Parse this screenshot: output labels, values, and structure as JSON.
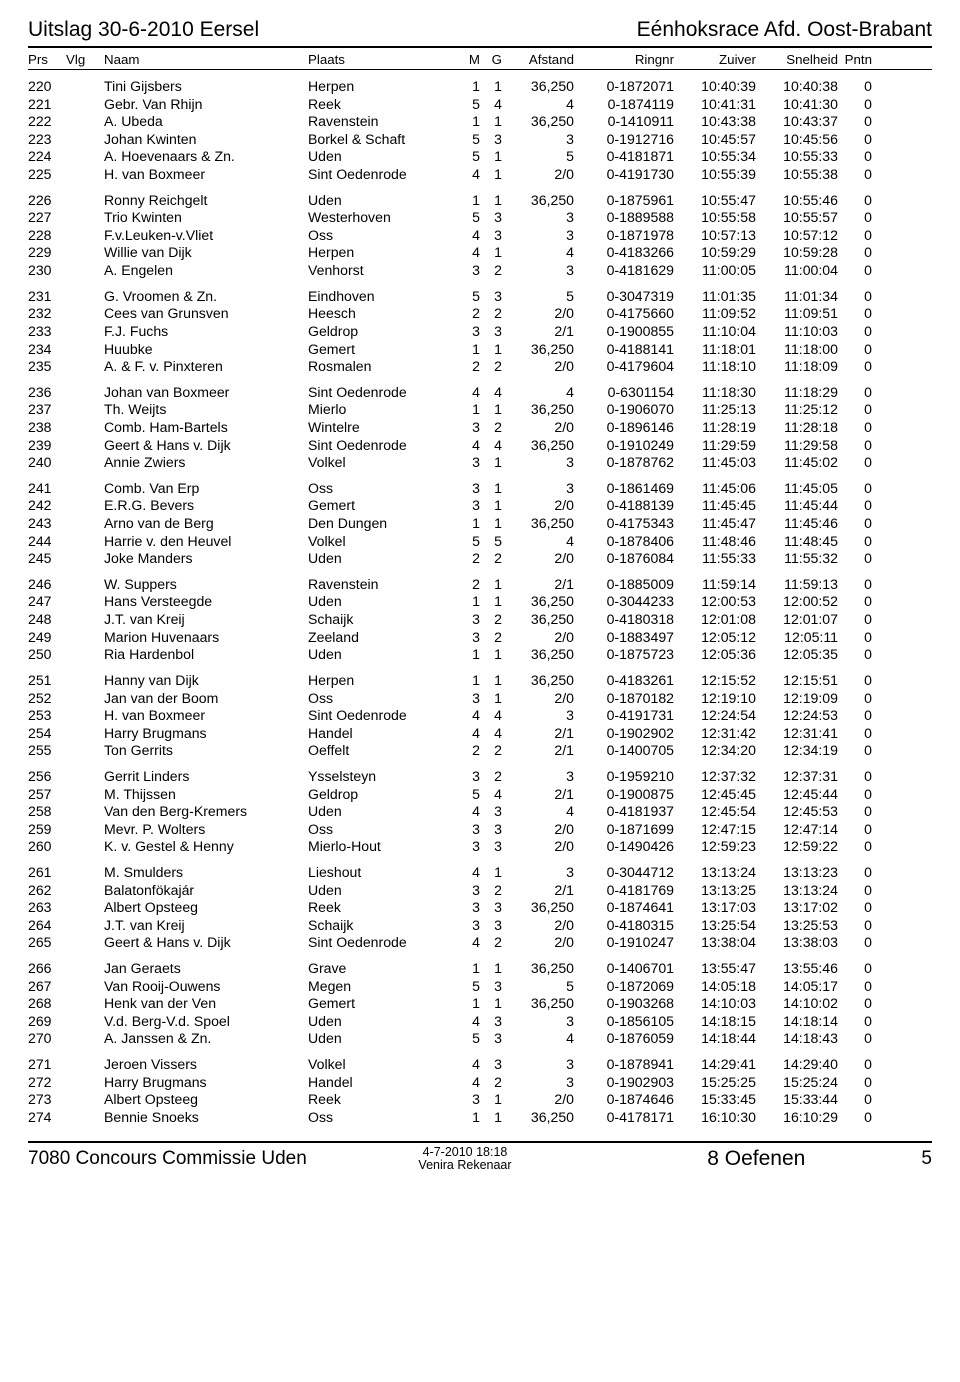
{
  "header": {
    "left": "Uitslag  30-6-2010     Eersel",
    "right": "Eénhoksrace Afd. Oost-Brabant"
  },
  "columns": [
    "Prs",
    "Vlg",
    "Naam",
    "",
    "Plaats",
    "M",
    "G",
    "Afstand",
    "Ringnr",
    "Zuiver",
    "Snelheid",
    "Pntn"
  ],
  "footer": {
    "left": "7080 Concours Commissie Uden",
    "mid1": "4-7-2010        18:18",
    "mid2": "Venira Rekenaar",
    "right1": "8  Oefenen",
    "right2": "5"
  },
  "blocks": [
    [
      {
        "prs": "220",
        "naam": "Tini Gijsbers",
        "plaats": "Herpen",
        "m": "1",
        "g": "1",
        "afst": "36,250",
        "ring": "0-1872071",
        "zuiv": "10:40:39",
        "snel": "10:40:38",
        "pntn": "0"
      },
      {
        "prs": "221",
        "naam": "Gebr. Van Rhijn",
        "plaats": "Reek",
        "m": "5",
        "g": "4",
        "afst": "4",
        "ring": "0-1874119",
        "zuiv": "10:41:31",
        "snel": "10:41:30",
        "pntn": "0"
      },
      {
        "prs": "222",
        "naam": "A. Ubeda",
        "plaats": "Ravenstein",
        "m": "1",
        "g": "1",
        "afst": "36,250",
        "ring": "0-1410911",
        "zuiv": "10:43:38",
        "snel": "10:43:37",
        "pntn": "0"
      },
      {
        "prs": "223",
        "naam": "Johan Kwinten",
        "plaats": "Borkel & Schaft",
        "m": "5",
        "g": "3",
        "afst": "3",
        "ring": "0-1912716",
        "zuiv": "10:45:57",
        "snel": "10:45:56",
        "pntn": "0"
      },
      {
        "prs": "224",
        "naam": "A. Hoevenaars & Zn.",
        "plaats": "Uden",
        "m": "5",
        "g": "1",
        "afst": "5",
        "ring": "0-4181871",
        "zuiv": "10:55:34",
        "snel": "10:55:33",
        "pntn": "0"
      },
      {
        "prs": "225",
        "naam": "H. van Boxmeer",
        "plaats": "Sint Oedenrode",
        "m": "4",
        "g": "1",
        "afst": "2/0",
        "ring": "0-4191730",
        "zuiv": "10:55:39",
        "snel": "10:55:38",
        "pntn": "0"
      }
    ],
    [
      {
        "prs": "226",
        "naam": "Ronny Reichgelt",
        "plaats": "Uden",
        "m": "1",
        "g": "1",
        "afst": "36,250",
        "ring": "0-1875961",
        "zuiv": "10:55:47",
        "snel": "10:55:46",
        "pntn": "0"
      },
      {
        "prs": "227",
        "naam": "Trio Kwinten",
        "plaats": "Westerhoven",
        "m": "5",
        "g": "3",
        "afst": "3",
        "ring": "0-1889588",
        "zuiv": "10:55:58",
        "snel": "10:55:57",
        "pntn": "0"
      },
      {
        "prs": "228",
        "naam": "F.v.Leuken-v.Vliet",
        "plaats": "Oss",
        "m": "4",
        "g": "3",
        "afst": "3",
        "ring": "0-1871978",
        "zuiv": "10:57:13",
        "snel": "10:57:12",
        "pntn": "0"
      },
      {
        "prs": "229",
        "naam": "Willie van Dijk",
        "plaats": "Herpen",
        "m": "4",
        "g": "1",
        "afst": "4",
        "ring": "0-4183266",
        "zuiv": "10:59:29",
        "snel": "10:59:28",
        "pntn": "0"
      },
      {
        "prs": "230",
        "naam": "A. Engelen",
        "plaats": "Venhorst",
        "m": "3",
        "g": "2",
        "afst": "3",
        "ring": "0-4181629",
        "zuiv": "11:00:05",
        "snel": "11:00:04",
        "pntn": "0"
      }
    ],
    [
      {
        "prs": "231",
        "naam": "G. Vroomen & Zn.",
        "plaats": "Eindhoven",
        "m": "5",
        "g": "3",
        "afst": "5",
        "ring": "0-3047319",
        "zuiv": "11:01:35",
        "snel": "11:01:34",
        "pntn": "0"
      },
      {
        "prs": "232",
        "naam": "Cees van Grunsven",
        "plaats": "Heesch",
        "m": "2",
        "g": "2",
        "afst": "2/0",
        "ring": "0-4175660",
        "zuiv": "11:09:52",
        "snel": "11:09:51",
        "pntn": "0"
      },
      {
        "prs": "233",
        "naam": "F.J. Fuchs",
        "plaats": "Geldrop",
        "m": "3",
        "g": "3",
        "afst": "2/1",
        "ring": "0-1900855",
        "zuiv": "11:10:04",
        "snel": "11:10:03",
        "pntn": "0"
      },
      {
        "prs": "234",
        "naam": "Huubke",
        "plaats": "Gemert",
        "m": "1",
        "g": "1",
        "afst": "36,250",
        "ring": "0-4188141",
        "zuiv": "11:18:01",
        "snel": "11:18:00",
        "pntn": "0"
      },
      {
        "prs": "235",
        "naam": "A. & F. v. Pinxteren",
        "plaats": "Rosmalen",
        "m": "2",
        "g": "2",
        "afst": "2/0",
        "ring": "0-4179604",
        "zuiv": "11:18:10",
        "snel": "11:18:09",
        "pntn": "0"
      }
    ],
    [
      {
        "prs": "236",
        "naam": "Johan van Boxmeer",
        "plaats": "Sint Oedenrode",
        "m": "4",
        "g": "4",
        "afst": "4",
        "ring": "0-6301154",
        "zuiv": "11:18:30",
        "snel": "11:18:29",
        "pntn": "0"
      },
      {
        "prs": "237",
        "naam": "Th. Weijts",
        "plaats": "Mierlo",
        "m": "1",
        "g": "1",
        "afst": "36,250",
        "ring": "0-1906070",
        "zuiv": "11:25:13",
        "snel": "11:25:12",
        "pntn": "0"
      },
      {
        "prs": "238",
        "naam": "Comb. Ham-Bartels",
        "plaats": "Wintelre",
        "m": "3",
        "g": "2",
        "afst": "2/0",
        "ring": "0-1896146",
        "zuiv": "11:28:19",
        "snel": "11:28:18",
        "pntn": "0"
      },
      {
        "prs": "239",
        "naam": "Geert & Hans v. Dijk",
        "plaats": "Sint Oedenrode",
        "m": "4",
        "g": "4",
        "afst": "36,250",
        "ring": "0-1910249",
        "zuiv": "11:29:59",
        "snel": "11:29:58",
        "pntn": "0"
      },
      {
        "prs": "240",
        "naam": "Annie Zwiers",
        "plaats": "Volkel",
        "m": "3",
        "g": "1",
        "afst": "3",
        "ring": "0-1878762",
        "zuiv": "11:45:03",
        "snel": "11:45:02",
        "pntn": "0"
      }
    ],
    [
      {
        "prs": "241",
        "naam": "Comb. Van Erp",
        "plaats": "Oss",
        "m": "3",
        "g": "1",
        "afst": "3",
        "ring": "0-1861469",
        "zuiv": "11:45:06",
        "snel": "11:45:05",
        "pntn": "0"
      },
      {
        "prs": "242",
        "naam": "E.R.G. Bevers",
        "plaats": "Gemert",
        "m": "3",
        "g": "1",
        "afst": "2/0",
        "ring": "0-4188139",
        "zuiv": "11:45:45",
        "snel": "11:45:44",
        "pntn": "0"
      },
      {
        "prs": "243",
        "naam": "Arno van de Berg",
        "plaats": "Den Dungen",
        "m": "1",
        "g": "1",
        "afst": "36,250",
        "ring": "0-4175343",
        "zuiv": "11:45:47",
        "snel": "11:45:46",
        "pntn": "0"
      },
      {
        "prs": "244",
        "naam": "Harrie v. den Heuvel",
        "plaats": "Volkel",
        "m": "5",
        "g": "5",
        "afst": "4",
        "ring": "0-1878406",
        "zuiv": "11:48:46",
        "snel": "11:48:45",
        "pntn": "0"
      },
      {
        "prs": "245",
        "naam": "Joke Manders",
        "plaats": "Uden",
        "m": "2",
        "g": "2",
        "afst": "2/0",
        "ring": "0-1876084",
        "zuiv": "11:55:33",
        "snel": "11:55:32",
        "pntn": "0"
      }
    ],
    [
      {
        "prs": "246",
        "naam": "W. Suppers",
        "plaats": "Ravenstein",
        "m": "2",
        "g": "1",
        "afst": "2/1",
        "ring": "0-1885009",
        "zuiv": "11:59:14",
        "snel": "11:59:13",
        "pntn": "0"
      },
      {
        "prs": "247",
        "naam": "Hans Versteegde",
        "plaats": "Uden",
        "m": "1",
        "g": "1",
        "afst": "36,250",
        "ring": "0-3044233",
        "zuiv": "12:00:53",
        "snel": "12:00:52",
        "pntn": "0"
      },
      {
        "prs": "248",
        "naam": "J.T. van Kreij",
        "plaats": "Schaijk",
        "m": "3",
        "g": "2",
        "afst": "36,250",
        "ring": "0-4180318",
        "zuiv": "12:01:08",
        "snel": "12:01:07",
        "pntn": "0"
      },
      {
        "prs": "249",
        "naam": "Marion Huvenaars",
        "plaats": "Zeeland",
        "m": "3",
        "g": "2",
        "afst": "2/0",
        "ring": "0-1883497",
        "zuiv": "12:05:12",
        "snel": "12:05:11",
        "pntn": "0"
      },
      {
        "prs": "250",
        "naam": "Ria Hardenbol",
        "plaats": "Uden",
        "m": "1",
        "g": "1",
        "afst": "36,250",
        "ring": "0-1875723",
        "zuiv": "12:05:36",
        "snel": "12:05:35",
        "pntn": "0"
      }
    ],
    [
      {
        "prs": "251",
        "naam": "Hanny van Dijk",
        "plaats": "Herpen",
        "m": "1",
        "g": "1",
        "afst": "36,250",
        "ring": "0-4183261",
        "zuiv": "12:15:52",
        "snel": "12:15:51",
        "pntn": "0"
      },
      {
        "prs": "252",
        "naam": "Jan van der Boom",
        "plaats": "Oss",
        "m": "3",
        "g": "1",
        "afst": "2/0",
        "ring": "0-1870182",
        "zuiv": "12:19:10",
        "snel": "12:19:09",
        "pntn": "0"
      },
      {
        "prs": "253",
        "naam": "H. van Boxmeer",
        "plaats": "Sint Oedenrode",
        "m": "4",
        "g": "4",
        "afst": "3",
        "ring": "0-4191731",
        "zuiv": "12:24:54",
        "snel": "12:24:53",
        "pntn": "0"
      },
      {
        "prs": "254",
        "naam": "Harry Brugmans",
        "plaats": "Handel",
        "m": "4",
        "g": "4",
        "afst": "2/1",
        "ring": "0-1902902",
        "zuiv": "12:31:42",
        "snel": "12:31:41",
        "pntn": "0"
      },
      {
        "prs": "255",
        "naam": "Ton Gerrits",
        "plaats": "Oeffelt",
        "m": "2",
        "g": "2",
        "afst": "2/1",
        "ring": "0-1400705",
        "zuiv": "12:34:20",
        "snel": "12:34:19",
        "pntn": "0"
      }
    ],
    [
      {
        "prs": "256",
        "naam": "Gerrit Linders",
        "plaats": "Ysselsteyn",
        "m": "3",
        "g": "2",
        "afst": "3",
        "ring": "0-1959210",
        "zuiv": "12:37:32",
        "snel": "12:37:31",
        "pntn": "0"
      },
      {
        "prs": "257",
        "naam": "M. Thijssen",
        "plaats": "Geldrop",
        "m": "5",
        "g": "4",
        "afst": "2/1",
        "ring": "0-1900875",
        "zuiv": "12:45:45",
        "snel": "12:45:44",
        "pntn": "0"
      },
      {
        "prs": "258",
        "naam": "Van den Berg-Kremers",
        "plaats": "Uden",
        "m": "4",
        "g": "3",
        "afst": "4",
        "ring": "0-4181937",
        "zuiv": "12:45:54",
        "snel": "12:45:53",
        "pntn": "0"
      },
      {
        "prs": "259",
        "naam": "Mevr. P. Wolters",
        "plaats": "Oss",
        "m": "3",
        "g": "3",
        "afst": "2/0",
        "ring": "0-1871699",
        "zuiv": "12:47:15",
        "snel": "12:47:14",
        "pntn": "0"
      },
      {
        "prs": "260",
        "naam": "K. v. Gestel & Henny",
        "plaats": "Mierlo-Hout",
        "m": "3",
        "g": "3",
        "afst": "2/0",
        "ring": "0-1490426",
        "zuiv": "12:59:23",
        "snel": "12:59:22",
        "pntn": "0"
      }
    ],
    [
      {
        "prs": "261",
        "naam": "M. Smulders",
        "plaats": "Lieshout",
        "m": "4",
        "g": "1",
        "afst": "3",
        "ring": "0-3044712",
        "zuiv": "13:13:24",
        "snel": "13:13:23",
        "pntn": "0"
      },
      {
        "prs": "262",
        "naam": "Balatonfökajár",
        "plaats": "Uden",
        "m": "3",
        "g": "2",
        "afst": "2/1",
        "ring": "0-4181769",
        "zuiv": "13:13:25",
        "snel": "13:13:24",
        "pntn": "0"
      },
      {
        "prs": "263",
        "naam": "Albert Opsteeg",
        "plaats": "Reek",
        "m": "3",
        "g": "3",
        "afst": "36,250",
        "ring": "0-1874641",
        "zuiv": "13:17:03",
        "snel": "13:17:02",
        "pntn": "0"
      },
      {
        "prs": "264",
        "naam": "J.T. van Kreij",
        "plaats": "Schaijk",
        "m": "3",
        "g": "3",
        "afst": "2/0",
        "ring": "0-4180315",
        "zuiv": "13:25:54",
        "snel": "13:25:53",
        "pntn": "0"
      },
      {
        "prs": "265",
        "naam": "Geert & Hans v. Dijk",
        "plaats": "Sint Oedenrode",
        "m": "4",
        "g": "2",
        "afst": "2/0",
        "ring": "0-1910247",
        "zuiv": "13:38:04",
        "snel": "13:38:03",
        "pntn": "0"
      }
    ],
    [
      {
        "prs": "266",
        "naam": "Jan Geraets",
        "plaats": "Grave",
        "m": "1",
        "g": "1",
        "afst": "36,250",
        "ring": "0-1406701",
        "zuiv": "13:55:47",
        "snel": "13:55:46",
        "pntn": "0"
      },
      {
        "prs": "267",
        "naam": "Van Rooij-Ouwens",
        "plaats": "Megen",
        "m": "5",
        "g": "3",
        "afst": "5",
        "ring": "0-1872069",
        "zuiv": "14:05:18",
        "snel": "14:05:17",
        "pntn": "0"
      },
      {
        "prs": "268",
        "naam": "Henk van der Ven",
        "plaats": "Gemert",
        "m": "1",
        "g": "1",
        "afst": "36,250",
        "ring": "0-1903268",
        "zuiv": "14:10:03",
        "snel": "14:10:02",
        "pntn": "0"
      },
      {
        "prs": "269",
        "naam": "V.d. Berg-V.d. Spoel",
        "plaats": "Uden",
        "m": "4",
        "g": "3",
        "afst": "3",
        "ring": "0-1856105",
        "zuiv": "14:18:15",
        "snel": "14:18:14",
        "pntn": "0"
      },
      {
        "prs": "270",
        "naam": "A. Janssen & Zn.",
        "plaats": "Uden",
        "m": "5",
        "g": "3",
        "afst": "4",
        "ring": "0-1876059",
        "zuiv": "14:18:44",
        "snel": "14:18:43",
        "pntn": "0"
      }
    ],
    [
      {
        "prs": "271",
        "naam": "Jeroen Vissers",
        "plaats": "Volkel",
        "m": "4",
        "g": "3",
        "afst": "3",
        "ring": "0-1878941",
        "zuiv": "14:29:41",
        "snel": "14:29:40",
        "pntn": "0"
      },
      {
        "prs": "272",
        "naam": "Harry Brugmans",
        "plaats": "Handel",
        "m": "4",
        "g": "2",
        "afst": "3",
        "ring": "0-1902903",
        "zuiv": "15:25:25",
        "snel": "15:25:24",
        "pntn": "0"
      },
      {
        "prs": "273",
        "naam": "Albert Opsteeg",
        "plaats": "Reek",
        "m": "3",
        "g": "1",
        "afst": "2/0",
        "ring": "0-1874646",
        "zuiv": "15:33:45",
        "snel": "15:33:44",
        "pntn": "0"
      },
      {
        "prs": "274",
        "naam": "Bennie Snoeks",
        "plaats": "Oss",
        "m": "1",
        "g": "1",
        "afst": "36,250",
        "ring": "0-4178171",
        "zuiv": "16:10:30",
        "snel": "16:10:29",
        "pntn": "0"
      }
    ]
  ]
}
